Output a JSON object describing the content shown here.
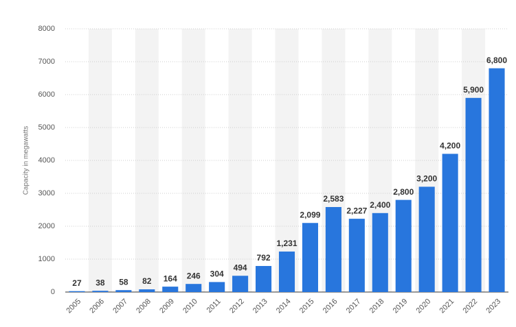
{
  "chart_data": {
    "type": "bar",
    "y_axis_label": "Capacity in megawatts",
    "categories": [
      "2005",
      "2006",
      "2007",
      "2008",
      "2009",
      "2010",
      "2011",
      "2012",
      "2013",
      "2014",
      "2015",
      "2016",
      "2017",
      "2018",
      "2019",
      "2020",
      "2021",
      "2022",
      "2023"
    ],
    "values": [
      27,
      38,
      58,
      82,
      164,
      246,
      304,
      494,
      792,
      1231,
      2099,
      2583,
      2227,
      2400,
      2800,
      3200,
      4200,
      5900,
      6800
    ],
    "value_labels": [
      "27",
      "38",
      "58",
      "82",
      "164",
      "246",
      "304",
      "494",
      "792",
      "1,231",
      "2,099",
      "2,583",
      "2,227",
      "2,400",
      "2,800",
      "3,200",
      "4,200",
      "5,900",
      "6,800"
    ],
    "color": "#2876dd",
    "ylim": [
      0,
      8000
    ],
    "yticks": [
      0,
      1000,
      2000,
      3000,
      4000,
      5000,
      6000,
      7000,
      8000
    ],
    "grid": true
  }
}
